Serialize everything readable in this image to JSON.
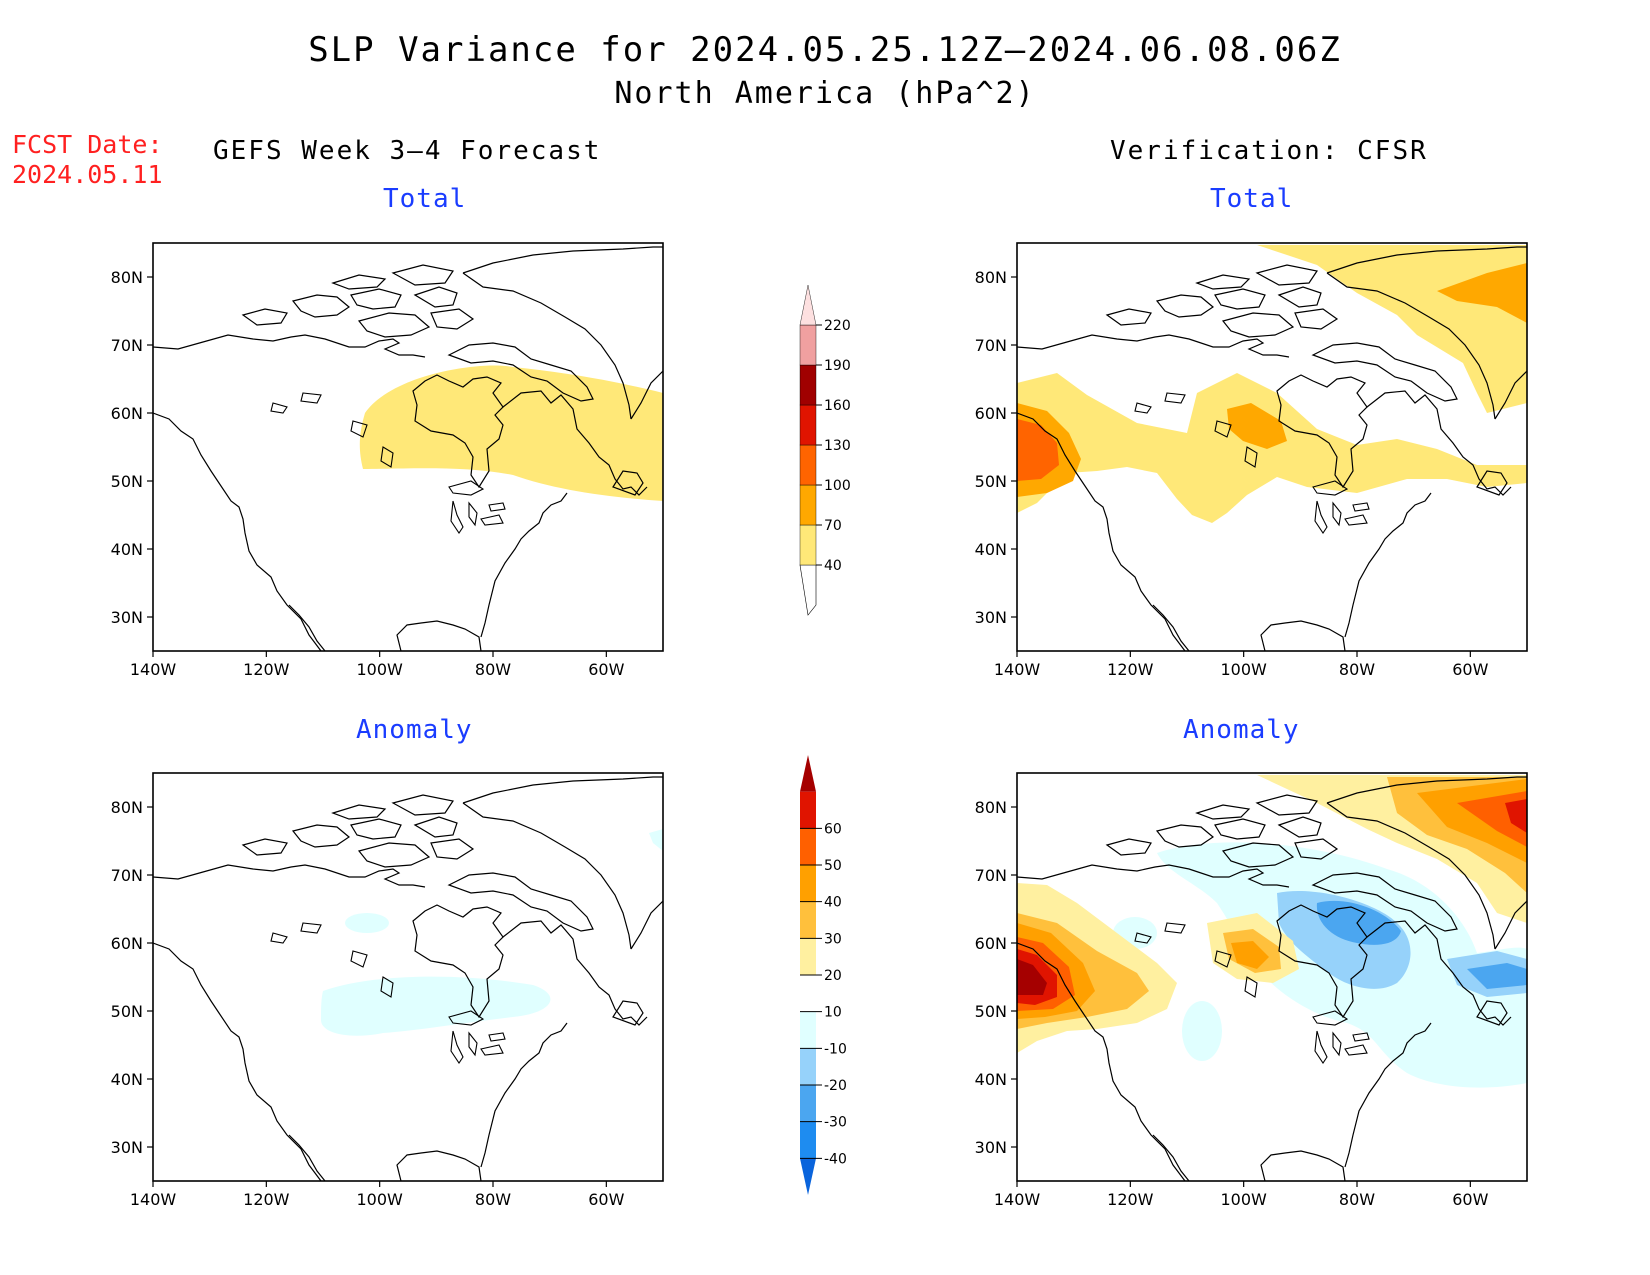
{
  "title": "SLP Variance for 2024.05.25.12Z–2024.06.08.06Z",
  "subtitle": "North America (hPa^2)",
  "fcst_label": "FCST Date:",
  "fcst_date": "2024.05.11",
  "left_column_title": "GEFS Week 3–4 Forecast",
  "right_column_title": "Verification: CFSR",
  "panel_titles": {
    "total": "Total",
    "anomaly": "Anomaly"
  },
  "colors": {
    "panel_title": "#1a3cff",
    "fcst": "#ff2020"
  },
  "map_extent": {
    "lon": [
      -140,
      -50
    ],
    "lat": [
      25,
      85
    ]
  },
  "lat_ticks": [
    "30N",
    "40N",
    "50N",
    "60N",
    "70N",
    "80N"
  ],
  "lon_ticks": [
    "140W",
    "120W",
    "100W",
    "80W",
    "60W"
  ],
  "total_colorbar": {
    "levels": [
      "40",
      "70",
      "100",
      "130",
      "160",
      "190",
      "220"
    ],
    "colors": [
      "#ffe878",
      "#ffa800",
      "#ff6400",
      "#e01400",
      "#a00000",
      "#f0a0a0",
      "#fde0e0"
    ]
  },
  "anomaly_colorbar": {
    "levels": [
      "-40",
      "-30",
      "-20",
      "-10",
      "10",
      "20",
      "30",
      "40",
      "50",
      "60"
    ],
    "colors": [
      "#0a64dc",
      "#1e8cf0",
      "#4ba6f0",
      "#96d2fa",
      "#e0ffff",
      "#ffffff",
      "#fff0a0",
      "#ffc03c",
      "#ffa000",
      "#ff6000",
      "#e01400",
      "#a50000"
    ]
  }
}
